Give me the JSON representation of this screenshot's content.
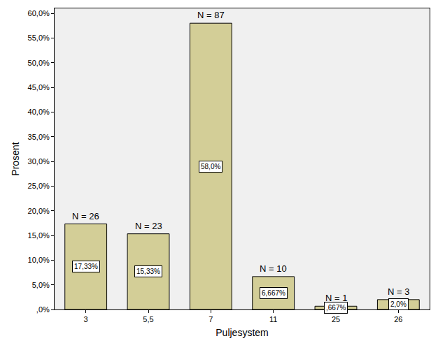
{
  "chart_data": {
    "type": "bar",
    "x_label": "Puljesystem",
    "y_label": "Prosent",
    "categories": [
      "3",
      "5,5",
      "7",
      "11",
      "25",
      "26"
    ],
    "values": [
      17.33,
      15.33,
      58.0,
      6.667,
      0.667,
      2.0
    ],
    "value_labels": [
      "17,33%",
      "15,33%",
      "58,0%",
      "6,667%",
      ",667%",
      "2,0%"
    ],
    "data_labels": true,
    "annotations": [
      "N = 26",
      "N = 23",
      "N = 87",
      "N = 10",
      "N = 1",
      "N = 3"
    ],
    "color": "#d3ce97",
    "ylim": [
      0,
      61
    ],
    "yticks": [
      {
        "value": 0,
        "label": ",0%"
      },
      {
        "value": 5,
        "label": "5,0%"
      },
      {
        "value": 10,
        "label": "10,0%"
      },
      {
        "value": 15,
        "label": "15,0%"
      },
      {
        "value": 20,
        "label": "20,0%"
      },
      {
        "value": 25,
        "label": "25,0%"
      },
      {
        "value": 30,
        "label": "30,0%"
      },
      {
        "value": 35,
        "label": "35,0%"
      },
      {
        "value": 40,
        "label": "40,0%"
      },
      {
        "value": 45,
        "label": "45,0%"
      },
      {
        "value": 50,
        "label": "50,0%"
      },
      {
        "value": 55,
        "label": "55,0%"
      },
      {
        "value": 60,
        "label": "60,0%"
      }
    ],
    "grid": false
  }
}
